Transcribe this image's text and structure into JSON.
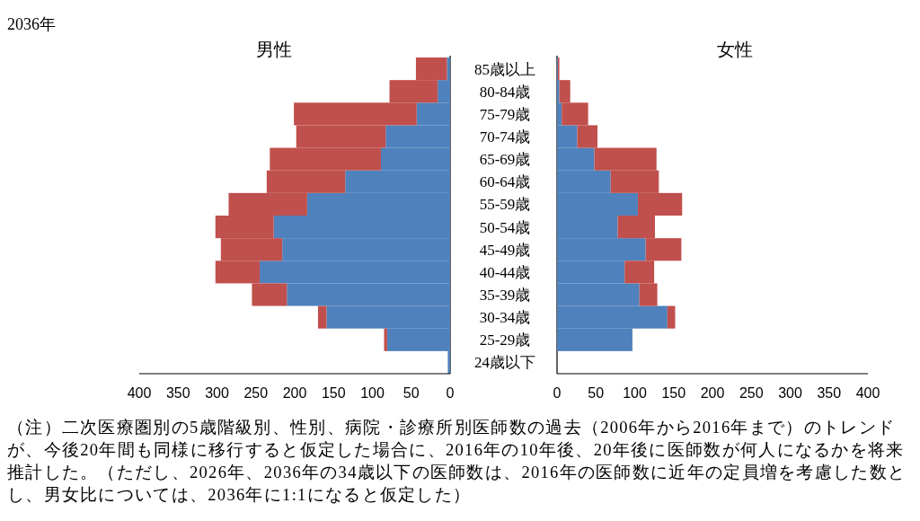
{
  "chart_data": [
    {
      "type": "bar",
      "orientation": "horizontal",
      "stacked": true,
      "title": "男性",
      "categories": [
        "85歳以上",
        "80-84歳",
        "75-79歳",
        "70-74歳",
        "65-69歳",
        "60-64歳",
        "55-59歳",
        "50-54歳",
        "45-49歳",
        "40-44歳",
        "35-39歳",
        "30-34歳",
        "25-29歳",
        "24歳以下"
      ],
      "series": [
        {
          "color": "#4f81bd",
          "values": [
            4,
            16,
            43,
            83,
            89,
            135,
            184,
            227,
            216,
            245,
            210,
            159,
            81,
            3
          ]
        },
        {
          "color": "#c0504d",
          "values": [
            40,
            62,
            158,
            115,
            143,
            101,
            101,
            75,
            79,
            57,
            45,
            11,
            4,
            0
          ]
        }
      ],
      "xlim": [
        400,
        0
      ],
      "xticks": [
        400,
        350,
        300,
        250,
        200,
        150,
        100,
        50,
        0
      ],
      "annotations": [
        "2036年",
        "（注）二次医療圏別の5歳階級別、性別、病院・診療所別医師数の過去（2006年から2016年まで）のトレンドが、今後20年間も同様に移行すると仮定した場合に、2016年の10年後、20年後に医師数が何人になるかを将来推計した。（ただし、2026年、2036年の34歳以下の医師数は、2016年の医師数に近年の定員増を考慮した数とし、男女比については、2036年に1:1になると仮定した）"
      ]
    },
    {
      "type": "bar",
      "orientation": "horizontal",
      "stacked": true,
      "title": "女性",
      "categories": [
        null,
        null,
        null,
        null,
        null,
        null,
        null,
        null,
        null,
        null,
        null,
        null,
        null,
        null
      ],
      "series": [
        {
          "color": "#4f81bd",
          "values": [
            1,
            3,
            6,
            26,
            48,
            69,
            104,
            78,
            114,
            87,
            106,
            142,
            97,
            0
          ]
        },
        {
          "color": "#c0504d",
          "values": [
            2,
            14,
            34,
            26,
            80,
            62,
            57,
            48,
            46,
            38,
            23,
            10,
            0,
            0
          ]
        }
      ],
      "xlim": [
        0,
        400
      ],
      "xticks": [
        0,
        50,
        100,
        150,
        200,
        250,
        300,
        350,
        400
      ],
      "tick_labels": "x"
    }
  ]
}
